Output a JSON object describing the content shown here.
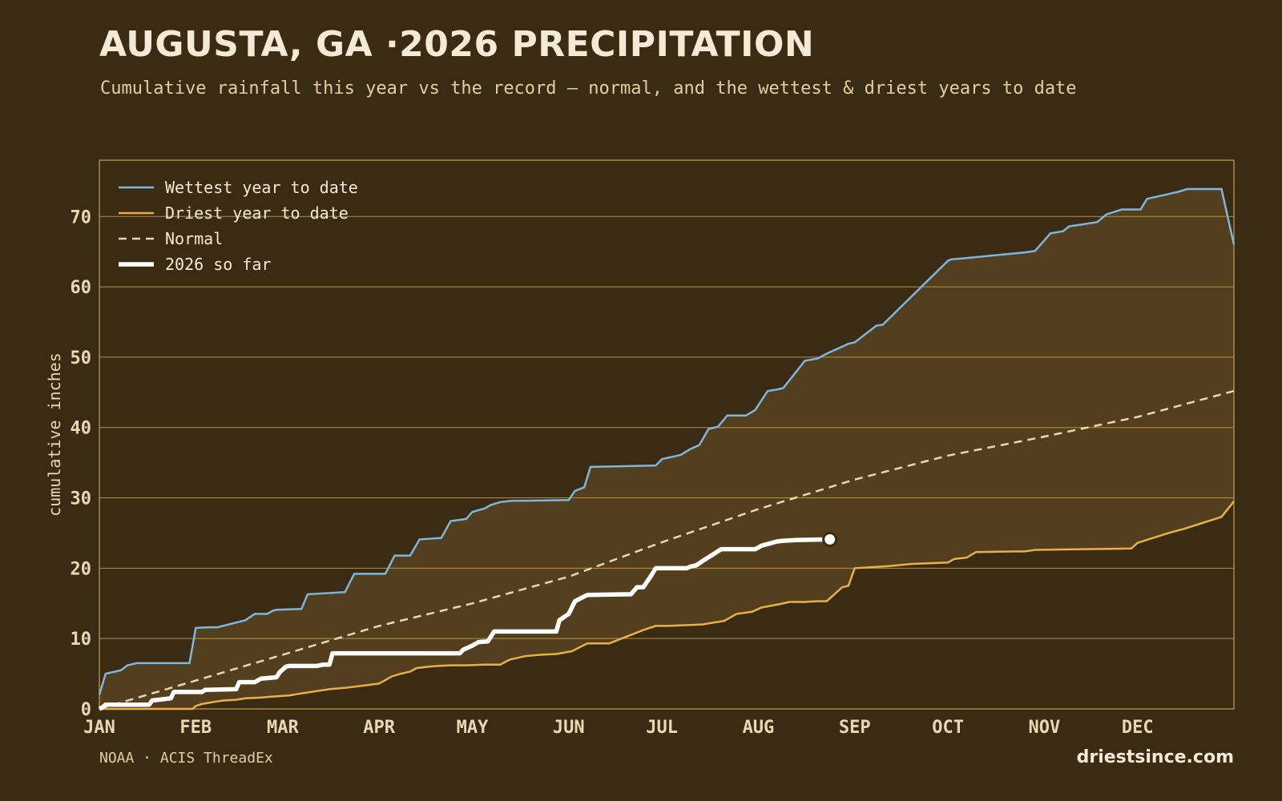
{
  "title": "AUGUSTA, GA ·2026 PRECIPITATION",
  "subtitle": "Cumulative rainfall this year vs the record — normal, and the wettest & driest years to date",
  "footer": {
    "source": "NOAA · ACIS ThreadEx",
    "site": "driestsince.com"
  },
  "colors": {
    "background": "#3a2b14",
    "band": "#533f1e",
    "grid": "#c9a24a",
    "wettest": "#7fb6dc",
    "driest": "#e6b04a",
    "normal": "#e9d8b4",
    "current": "#ffffff",
    "text": "#e9d8b4"
  },
  "chart_data": {
    "type": "line",
    "ylabel": "cumulative inches",
    "xlabel": "",
    "ylim": [
      0,
      78
    ],
    "yticks": [
      0,
      10,
      20,
      30,
      40,
      50,
      60,
      70
    ],
    "x_unit": "day of year",
    "xlim": [
      1,
      366
    ],
    "xticks": [
      {
        "label": "JAN",
        "day": 1
      },
      {
        "label": "FEB",
        "day": 32
      },
      {
        "label": "MAR",
        "day": 60
      },
      {
        "label": "APR",
        "day": 91
      },
      {
        "label": "MAY",
        "day": 121
      },
      {
        "label": "JUN",
        "day": 152
      },
      {
        "label": "JUL",
        "day": 182
      },
      {
        "label": "AUG",
        "day": 213
      },
      {
        "label": "SEP",
        "day": 244
      },
      {
        "label": "OCT",
        "day": 274
      },
      {
        "label": "NOV",
        "day": 305
      },
      {
        "label": "DEC",
        "day": 335
      }
    ],
    "grid": true,
    "legend_position": "top-left",
    "series": [
      {
        "name": "Wettest year to date",
        "style": "solid",
        "x": [
          1,
          3,
          6,
          8,
          10,
          13,
          16,
          16.5,
          30,
          32,
          36,
          39,
          48,
          51,
          55,
          57,
          58,
          66,
          68,
          80,
          83,
          93,
          96,
          101,
          104,
          111,
          114,
          119,
          121,
          125,
          127,
          130,
          134,
          138,
          152,
          154,
          157,
          159,
          180,
          182,
          188,
          191,
          194,
          197,
          200,
          203,
          209,
          212,
          216,
          219,
          221,
          228,
          232,
          235,
          242,
          244,
          251,
          253,
          274,
          275,
          278,
          299,
          302,
          307,
          311,
          313,
          322,
          325,
          330,
          336,
          338,
          346,
          348,
          351,
          362,
          366
        ],
        "y": [
          2,
          5,
          5.3,
          5.5,
          6.2,
          6.5,
          6.5,
          6.5,
          6.5,
          11.5,
          11.6,
          11.6,
          12.6,
          13.5,
          13.5,
          14,
          14.1,
          14.2,
          16.3,
          16.6,
          19.2,
          19.2,
          21.8,
          21.8,
          24.1,
          24.3,
          26.7,
          27.0,
          28.0,
          28.5,
          29.0,
          29.4,
          29.6,
          29.6,
          29.7,
          31.0,
          31.5,
          34.4,
          34.6,
          35.5,
          36.1,
          36.9,
          37.5,
          39.8,
          40.1,
          41.7,
          41.7,
          42.5,
          45.2,
          45.4,
          45.6,
          49.5,
          49.8,
          50.5,
          51.9,
          52.1,
          54.5,
          54.6,
          63.7,
          63.9,
          64.0,
          64.9,
          65.1,
          67.6,
          67.9,
          68.6,
          69.2,
          70.3,
          71.0,
          71.0,
          72.5,
          73.3,
          73.5,
          73.9,
          73.9,
          66.0
        ]
      },
      {
        "name": "Driest year to date",
        "style": "solid",
        "x": [
          1,
          31,
          32,
          34,
          38,
          41,
          45,
          48,
          53,
          55,
          62,
          66,
          72,
          75,
          80,
          84,
          91,
          95,
          98,
          101,
          103,
          107,
          110,
          114,
          119,
          125,
          130,
          133,
          138,
          143,
          148,
          153,
          158,
          165,
          176,
          180,
          184,
          195,
          199,
          202,
          206,
          211,
          214,
          220,
          223,
          228,
          232,
          235,
          240,
          242,
          244,
          255,
          262,
          274,
          276,
          280,
          283,
          299,
          302,
          333,
          335,
          340,
          345,
          350,
          355,
          362,
          366
        ],
        "y": [
          0,
          0,
          0.4,
          0.7,
          1.0,
          1.2,
          1.3,
          1.5,
          1.6,
          1.7,
          1.9,
          2.2,
          2.6,
          2.8,
          3.0,
          3.2,
          3.6,
          4.6,
          5.0,
          5.3,
          5.8,
          6.0,
          6.1,
          6.2,
          6.2,
          6.3,
          6.3,
          7.0,
          7.5,
          7.7,
          7.8,
          8.2,
          9.3,
          9.3,
          11.2,
          11.8,
          11.8,
          12.0,
          12.3,
          12.5,
          13.5,
          13.8,
          14.4,
          14.9,
          15.2,
          15.2,
          15.3,
          15.3,
          17.3,
          17.5,
          20.0,
          20.3,
          20.6,
          20.8,
          21.3,
          21.5,
          22.3,
          22.4,
          22.6,
          22.8,
          23.6,
          24.3,
          25.0,
          25.6,
          26.3,
          27.3,
          29.5
        ]
      },
      {
        "name": "Normal",
        "style": "dashed",
        "x": [
          1,
          31,
          60,
          91,
          121,
          152,
          182,
          213,
          244,
          274,
          305,
          335,
          366
        ],
        "y": [
          0,
          3.9,
          7.7,
          11.8,
          15.0,
          18.8,
          23.7,
          28.4,
          32.6,
          36.0,
          38.7,
          41.5,
          45.2
        ]
      },
      {
        "name": "2026 so far",
        "style": "thick",
        "x": [
          1,
          2,
          3,
          17,
          18,
          24,
          25,
          34,
          35,
          45,
          46,
          51,
          53,
          58,
          59,
          61,
          62,
          71,
          73,
          75,
          76,
          117,
          118,
          121,
          123,
          126,
          128,
          133,
          148,
          149,
          152,
          154,
          158,
          172,
          174,
          176,
          178,
          180,
          190,
          191,
          193,
          195,
          200,
          201,
          212,
          214,
          219,
          221,
          225,
          236
        ],
        "y": [
          0,
          0.2,
          0.6,
          0.6,
          1.2,
          1.5,
          2.4,
          2.4,
          2.7,
          2.8,
          3.8,
          3.8,
          4.3,
          4.5,
          5.2,
          6.0,
          6.1,
          6.1,
          6.3,
          6.3,
          7.9,
          7.9,
          8.4,
          9.0,
          9.5,
          9.6,
          11.0,
          11.0,
          11.0,
          12.6,
          13.5,
          15.3,
          16.2,
          16.3,
          17.3,
          17.3,
          18.6,
          20.0,
          20.0,
          20.2,
          20.4,
          21.0,
          22.4,
          22.7,
          22.7,
          23.2,
          23.8,
          23.9,
          24.0,
          24.1
        ]
      }
    ],
    "annotations": [
      {
        "type": "end-marker",
        "series": "2026 so far",
        "x": 236,
        "y": 24.1
      }
    ]
  }
}
